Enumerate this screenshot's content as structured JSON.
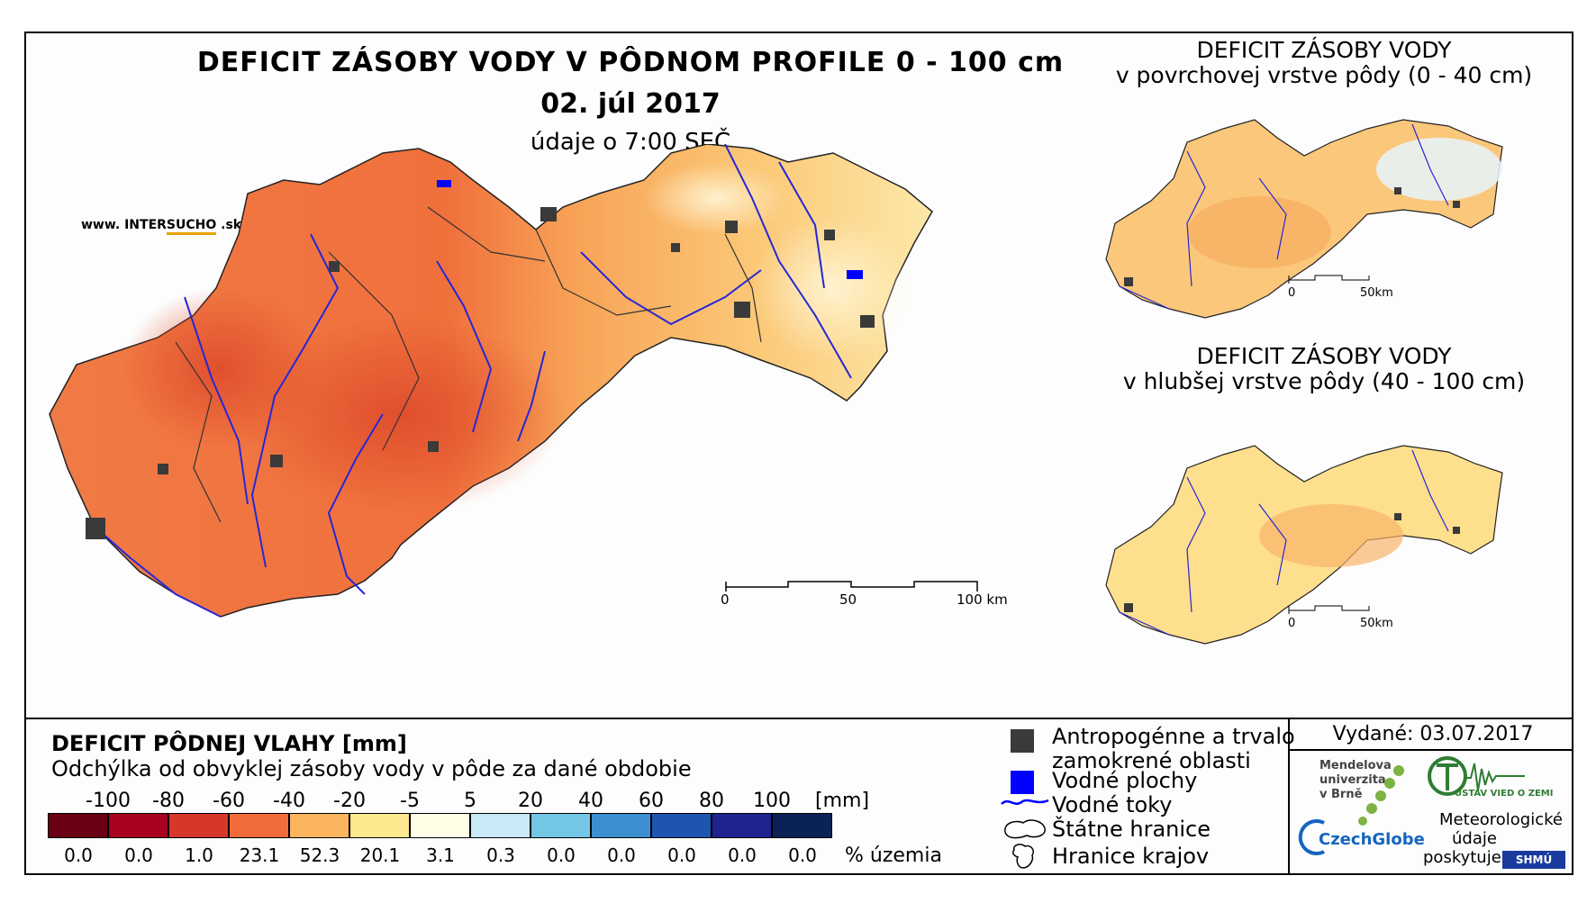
{
  "header": {
    "title": "DEFICIT ZÁSOBY VODY V PÔDNOM PROFILE 0 - 100 cm",
    "date": "02. júl 2017",
    "time_note": "údaje o 7:00 SEČ",
    "website_prefix": "www. INTER",
    "website_accent": "SUCHO",
    "website_suffix": " .sk"
  },
  "main_map": {
    "scale": {
      "labels": [
        "0",
        "50",
        "100 km"
      ]
    }
  },
  "inset_top": {
    "title_line1": "DEFICIT ZÁSOBY VODY",
    "title_line2": "v povrchovej vrstve pôdy (0 - 40 cm)",
    "scale": {
      "labels": [
        "0",
        "50km"
      ]
    }
  },
  "inset_bottom": {
    "title_line1": "DEFICIT ZÁSOBY VODY",
    "title_line2": "v hlubšej vrstve pôdy (40 - 100 cm)",
    "scale": {
      "labels": [
        "0",
        "50km"
      ]
    }
  },
  "legend": {
    "title": "DEFICIT PÔDNEJ VLAHY [mm]",
    "subtitle": "Odchýlka od obvyklej zásoby vody v pôde za dané obdobie",
    "unit": "[mm]",
    "percent_label": "% územia",
    "breaks": [
      "-100",
      "-80",
      "-60",
      "-40",
      "-20",
      "-5",
      "5",
      "20",
      "40",
      "60",
      "80",
      "100"
    ],
    "classes": [
      {
        "color": "#6b0014",
        "percent": "0.0"
      },
      {
        "color": "#a8001f",
        "percent": "0.0"
      },
      {
        "color": "#d7372b",
        "percent": "1.0"
      },
      {
        "color": "#f26b3a",
        "percent": "23.1"
      },
      {
        "color": "#fbb55f",
        "percent": "52.3"
      },
      {
        "color": "#fde88f",
        "percent": "20.1"
      },
      {
        "color": "#fffde6",
        "percent": "3.1"
      },
      {
        "color": "#c8e9f5",
        "percent": "0.3"
      },
      {
        "color": "#74c6e6",
        "percent": "0.0"
      },
      {
        "color": "#3c8fd0",
        "percent": "0.0"
      },
      {
        "color": "#1e55b0",
        "percent": "0.0"
      },
      {
        "color": "#1f2390",
        "percent": "0.0"
      },
      {
        "color": "#0b2257",
        "percent": "0.0"
      }
    ]
  },
  "symbols": {
    "anthropogenic_line1": "Antropogénne a trvalo",
    "anthropogenic_line2": "zamokrené oblasti",
    "water_bodies": "Vodné plochy",
    "streams": "Vodné toky",
    "state_border": "Štátne hranice",
    "region_border": "Hranice krajov",
    "anthropogenic_color": "#3a3a3a",
    "water_color": "#0000ff"
  },
  "credits": {
    "issued": "Vydané: 03.07.2017",
    "mendel_line1": "Mendelova",
    "mendel_line2": "univerzita",
    "mendel_line3": "v Brně",
    "czechglobe": "CzechGlobe",
    "uvz": "ÚSTAV VIED O ZEMI",
    "data_line1": "Meteorologické",
    "data_line2": "údaje",
    "data_line3": "poskytuje:",
    "shmu": "SHMÚ"
  }
}
